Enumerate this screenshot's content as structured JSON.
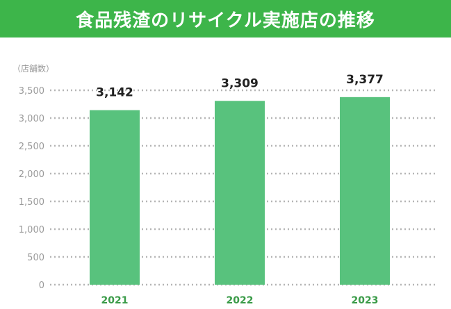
{
  "chart_data": {
    "type": "bar",
    "title": "食品残渣のリサイクル実施店の推移",
    "unit_label": "（店舗数）",
    "categories": [
      "2021",
      "2022",
      "2023"
    ],
    "values": [
      3142,
      3309,
      3377
    ],
    "data_labels": [
      "3,142",
      "3,309",
      "3,377"
    ],
    "ylim": [
      0,
      3500
    ],
    "yticks": [
      0,
      500,
      1000,
      1500,
      2000,
      2500,
      3000,
      3500
    ],
    "ytick_labels": [
      "0",
      "500",
      "1,000",
      "1,500",
      "2,000",
      "2,500",
      "3,000",
      "3,500"
    ],
    "grid": true,
    "colors": {
      "banner": "#3db54a",
      "bar": "#58c27d",
      "xtick": "#3a9b48"
    }
  }
}
